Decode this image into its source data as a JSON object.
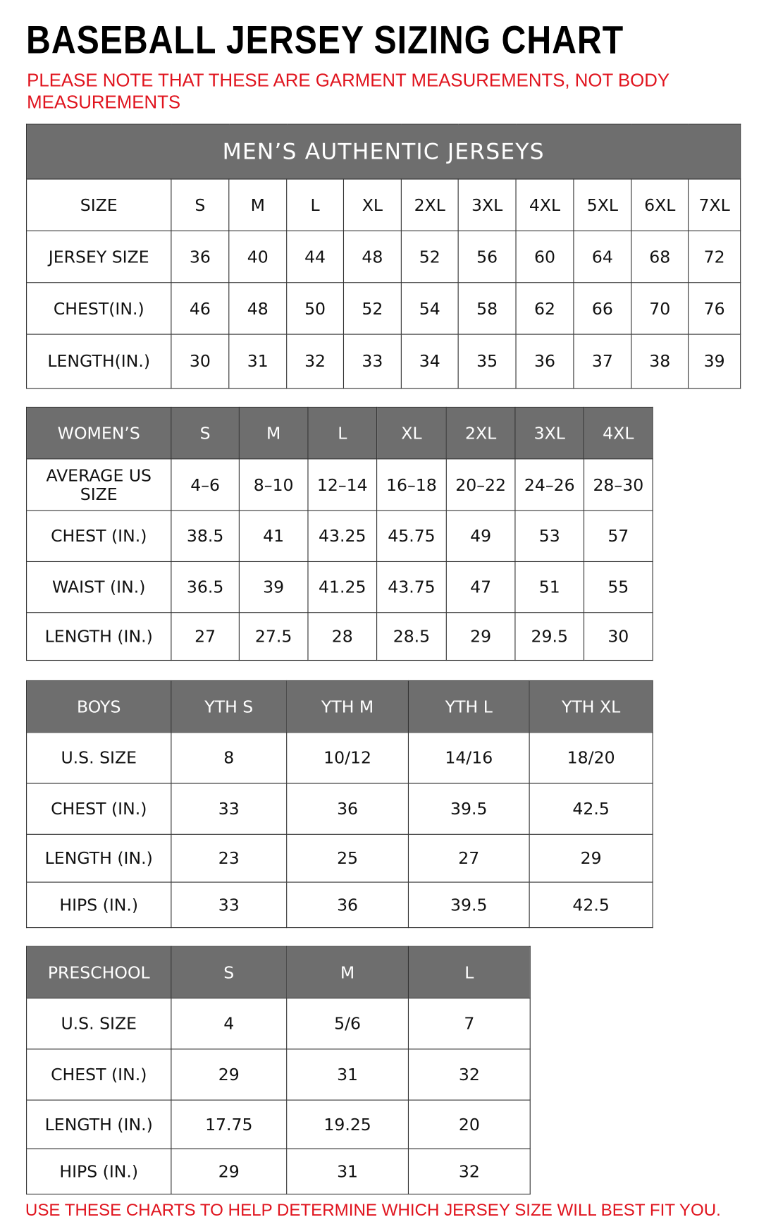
{
  "title": "BASEBALL JERSEY SIZING CHART",
  "note": "PLEASE NOTE THAT THESE ARE GARMENT MEASUREMENTS, NOT BODY MEASUREMENTS",
  "footer": "USE THESE CHARTS TO HELP DETERMINE WHICH JERSEY SIZE WILL BEST FIT YOU.",
  "colors": {
    "header_bg": "#6e6e6e",
    "note_red": "#e0141e"
  },
  "tables": [
    {
      "banner": "MEN’S AUTHENTIC JERSEYS",
      "header": [
        "SIZE",
        "S",
        "M",
        "L",
        "XL",
        "2XL",
        "3XL",
        "4XL",
        "5XL",
        "6XL",
        "7XL"
      ],
      "rows": [
        [
          "JERSEY SIZE",
          "36",
          "40",
          "44",
          "48",
          "52",
          "56",
          "60",
          "64",
          "68",
          "72"
        ],
        [
          "CHEST(IN.)",
          "46",
          "48",
          "50",
          "52",
          "54",
          "58",
          "62",
          "66",
          "70",
          "76"
        ],
        [
          "LENGTH(IN.)",
          "30",
          "31",
          "32",
          "33",
          "34",
          "35",
          "36",
          "37",
          "38",
          "39"
        ]
      ]
    },
    {
      "header": [
        "WOMEN’S",
        "S",
        "M",
        "L",
        "XL",
        "2XL",
        "3XL",
        "4XL"
      ],
      "rows": [
        [
          "AVERAGE US SIZE",
          "4–6",
          "8–10",
          "12–14",
          "16–18",
          "20–22",
          "24–26",
          "28–30"
        ],
        [
          "CHEST (IN.)",
          "38.5",
          "41",
          "43.25",
          "45.75",
          "49",
          "53",
          "57"
        ],
        [
          "WAIST (IN.)",
          "36.5",
          "39",
          "41.25",
          "43.75",
          "47",
          "51",
          "55"
        ],
        [
          "LENGTH (IN.)",
          "27",
          "27.5",
          "28",
          "28.5",
          "29",
          "29.5",
          "30"
        ]
      ]
    },
    {
      "header": [
        "BOYS",
        "YTH S",
        "YTH M",
        "YTH L",
        "YTH XL"
      ],
      "rows": [
        [
          "U.S. SIZE",
          "8",
          "10/12",
          "14/16",
          "18/20"
        ],
        [
          "CHEST (IN.)",
          "33",
          "36",
          "39.5",
          "42.5"
        ],
        [
          "LENGTH (IN.)",
          "23",
          "25",
          "27",
          "29"
        ],
        [
          "HIPS (IN.)",
          "33",
          "36",
          "39.5",
          "42.5"
        ]
      ]
    },
    {
      "header": [
        "PRESCHOOL",
        "S",
        "M",
        "L"
      ],
      "rows": [
        [
          "U.S. SIZE",
          "4",
          "5/6",
          "7"
        ],
        [
          "CHEST (IN.)",
          "29",
          "31",
          "32"
        ],
        [
          "LENGTH (IN.)",
          "17.75",
          "19.25",
          "20"
        ],
        [
          "HIPS (IN.)",
          "29",
          "31",
          "32"
        ]
      ]
    }
  ]
}
